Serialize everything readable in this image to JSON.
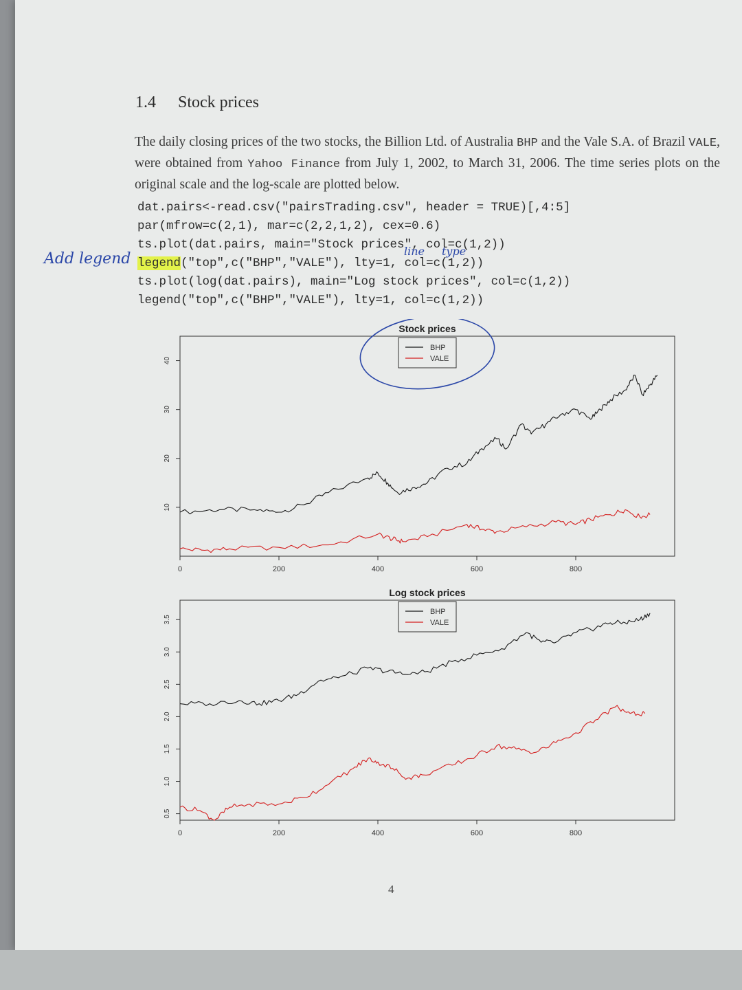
{
  "section": {
    "number": "1.4",
    "title": "Stock prices"
  },
  "paragraph": {
    "p1": "The daily closing prices of the two stocks, the Billion Ltd. of Australia ",
    "t1": "BHP",
    "p2": " and the Vale S.A. of Brazil ",
    "t2": "VALE",
    "p3": ", were obtained from ",
    "t3": "Yahoo Finance",
    "p4": " from July 1, 2002, to March 31, 2006. The time series plots on the original scale and the log-scale are plotted below."
  },
  "code": {
    "line1": "dat.pairs<-read.csv(\"pairsTrading.csv\", header = TRUE)[,4:5]",
    "line2": "par(mfrow=c(2,1), mar=c(2,2,1,2), cex=0.6)",
    "line3": "ts.plot(dat.pairs, main=\"Stock prices\", col=c(1,2))",
    "line4_highlight": "legend",
    "line4_rest": "(\"top\",c(\"BHP\",\"VALE\"), lty=1, col=c(1,2))",
    "line5": "ts.plot(log(dat.pairs), main=\"Log stock prices\", col=c(1,2))",
    "line6": "legend(\"top\",c(\"BHP\",\"VALE\"), lty=1, col=c(1,2))"
  },
  "handwriting": {
    "margin_note": "Add legend",
    "annotation_line": "line",
    "annotation_type": "type"
  },
  "page_number": "4",
  "colors": {
    "bhp": "#1a1a1a",
    "vale": "#d42020",
    "ink": "#2b47a8",
    "highlight": "#e3f24a"
  },
  "chart_data": [
    {
      "type": "line",
      "title": "Stock prices",
      "legend": {
        "position": "top",
        "entries": [
          "BHP",
          "VALE"
        ]
      },
      "xlim": [
        0,
        1000
      ],
      "ylim": [
        0,
        45
      ],
      "x_ticks": [
        "0",
        "200",
        "400",
        "600",
        "800"
      ],
      "y_ticks": [
        "10",
        "20",
        "30",
        "40"
      ],
      "series": [
        {
          "name": "BHP",
          "color": "#1a1a1a",
          "x": [
            0,
            80,
            150,
            200,
            250,
            300,
            380,
            400,
            420,
            440,
            470,
            500,
            540,
            580,
            610,
            640,
            660,
            690,
            710,
            740,
            770,
            800,
            830,
            850,
            870,
            900,
            920,
            935,
            950,
            965
          ],
          "y": [
            9,
            9.5,
            9.5,
            9,
            10.5,
            13,
            16,
            17,
            15,
            13,
            14,
            15,
            18,
            19,
            22,
            24,
            22,
            27,
            25,
            27,
            29,
            30,
            28,
            30,
            32,
            34,
            37,
            33,
            35,
            37
          ]
        },
        {
          "name": "VALE",
          "color": "#d42020",
          "x": [
            0,
            50,
            100,
            200,
            300,
            400,
            430,
            450,
            500,
            580,
            610,
            640,
            700,
            760,
            800,
            830,
            870,
            900,
            930,
            950
          ],
          "y": [
            1.5,
            1.2,
            1.5,
            1.8,
            2.3,
            4.5,
            3.5,
            3,
            4,
            6.5,
            5.5,
            5,
            6,
            7,
            6.5,
            7.5,
            8.5,
            9.5,
            8,
            8.5
          ]
        }
      ]
    },
    {
      "type": "line",
      "title": "Log stock prices",
      "legend": {
        "position": "top",
        "entries": [
          "BHP",
          "VALE"
        ]
      },
      "xlim": [
        0,
        1000
      ],
      "ylim": [
        0.4,
        3.8
      ],
      "x_ticks": [
        "0",
        "200",
        "400",
        "600",
        "800"
      ],
      "y_ticks": [
        "0.5",
        "1.0",
        "1.5",
        "2.0",
        "2.5",
        "3.0",
        "3.5"
      ],
      "series": [
        {
          "name": "BHP",
          "color": "#1a1a1a",
          "x": [
            0,
            60,
            120,
            160,
            200,
            240,
            280,
            320,
            380,
            420,
            460,
            500,
            550,
            600,
            650,
            700,
            730,
            760,
            800,
            830,
            870,
            900,
            930,
            950
          ],
          "y": [
            2.2,
            2.2,
            2.25,
            2.2,
            2.25,
            2.35,
            2.55,
            2.6,
            2.75,
            2.7,
            2.65,
            2.7,
            2.85,
            2.95,
            3.05,
            3.3,
            3.15,
            3.15,
            3.3,
            3.35,
            3.45,
            3.45,
            3.5,
            3.6
          ]
        },
        {
          "name": "VALE",
          "color": "#d42020",
          "x": [
            0,
            40,
            70,
            100,
            140,
            200,
            250,
            300,
            350,
            380,
            400,
            430,
            460,
            490,
            550,
            600,
            640,
            680,
            720,
            760,
            800,
            840,
            880,
            910,
            940
          ],
          "y": [
            0.6,
            0.55,
            0.4,
            0.6,
            0.65,
            0.65,
            0.75,
            0.95,
            1.2,
            1.35,
            1.3,
            1.2,
            1.05,
            1.1,
            1.25,
            1.4,
            1.55,
            1.5,
            1.45,
            1.6,
            1.75,
            1.95,
            2.15,
            2.05,
            2.05
          ]
        }
      ]
    }
  ]
}
